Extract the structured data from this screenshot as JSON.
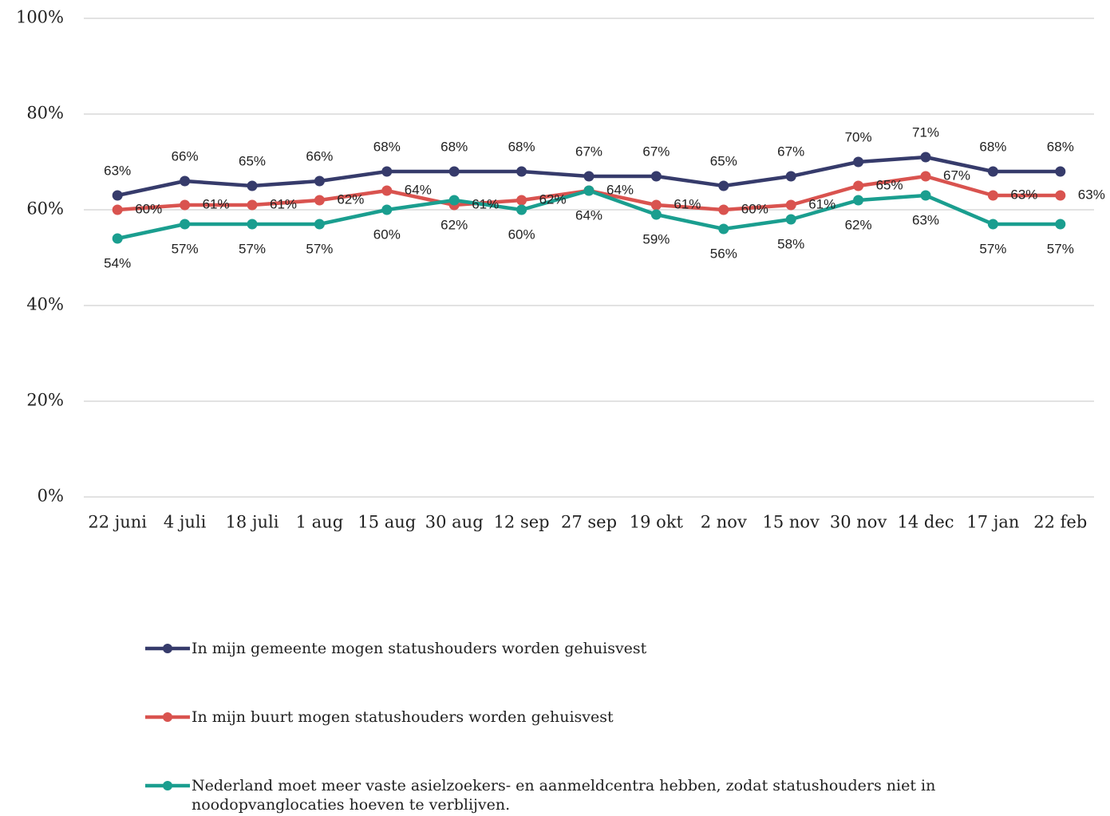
{
  "chart_data": {
    "type": "line",
    "categories": [
      "22 juni",
      "4 juli",
      "18 juli",
      "1 aug",
      "15 aug",
      "30 aug",
      "12 sep",
      "27 sep",
      "19 okt",
      "2 nov",
      "15 nov",
      "30 nov",
      "14 dec",
      "17 jan",
      "22 feb"
    ],
    "series": [
      {
        "name": "In mijn gemeente mogen statushouders worden gehuisvest",
        "color": "#363b6b",
        "values": [
          63,
          66,
          65,
          66,
          68,
          68,
          68,
          67,
          67,
          65,
          67,
          70,
          71,
          68,
          68
        ],
        "value_labels": [
          "63%",
          "66%",
          "65%",
          "66%",
          "68%",
          "68%",
          "68%",
          "67%",
          "67%",
          "65%",
          "67%",
          "70%",
          "71%",
          "68%",
          "68%"
        ]
      },
      {
        "name": "In mijn buurt mogen statushouders worden gehuisvest",
        "color": "#d9534f",
        "values": [
          60,
          61,
          61,
          62,
          64,
          61,
          62,
          64,
          61,
          60,
          61,
          65,
          67,
          63,
          63
        ],
        "value_labels": [
          "60%",
          "61%",
          "61%",
          "62%",
          "64%",
          "61%",
          "62%",
          "64%",
          "61%",
          "60%",
          "61%",
          "65%",
          "67%",
          "63%",
          "63%"
        ]
      },
      {
        "name": "Nederland moet meer vaste asielzoekers- en aanmeldcentra hebben, zodat statushouders niet in noodopvanglocaties hoeven te verblijven.",
        "color": "#1a9e8f",
        "values": [
          54,
          57,
          57,
          57,
          60,
          62,
          60,
          64,
          59,
          56,
          58,
          62,
          63,
          57,
          57
        ],
        "value_labels": [
          "54%",
          "57%",
          "57%",
          "57%",
          "60%",
          "62%",
          "60%",
          "64%",
          "59%",
          "56%",
          "58%",
          "62%",
          "63%",
          "57%",
          "57%"
        ]
      }
    ],
    "ylim": [
      0,
      100
    ],
    "yticks": [
      {
        "value": 0,
        "label": "0%"
      },
      {
        "value": 20,
        "label": "20%"
      },
      {
        "value": 40,
        "label": "40%"
      },
      {
        "value": 60,
        "label": "60%"
      },
      {
        "value": 80,
        "label": "80%"
      },
      {
        "value": 100,
        "label": "100%"
      }
    ],
    "grid": true
  }
}
